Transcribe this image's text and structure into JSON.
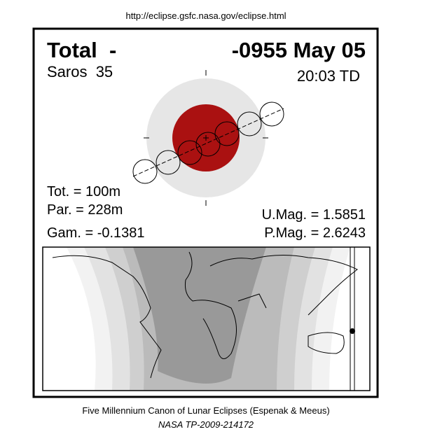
{
  "url": "http://eclipse.gsfc.nasa.gov/eclipse.html",
  "header": {
    "type": "Total  -",
    "date": "-0955 May 05",
    "saros": "Saros  35",
    "time": "20:03 TD"
  },
  "stats": {
    "tot": "Tot. = 100m",
    "par": "Par. = 228m",
    "gam": "Gam. = -0.1381",
    "umag": "U.Mag. = 1.5851",
    "pmag": "P.Mag. = 2.6243"
  },
  "footer": {
    "line1": "Five Millennium Canon of Lunar Eclipses (Espenak & Meeus)",
    "line2": "NASA TP-2009-214172"
  }
}
